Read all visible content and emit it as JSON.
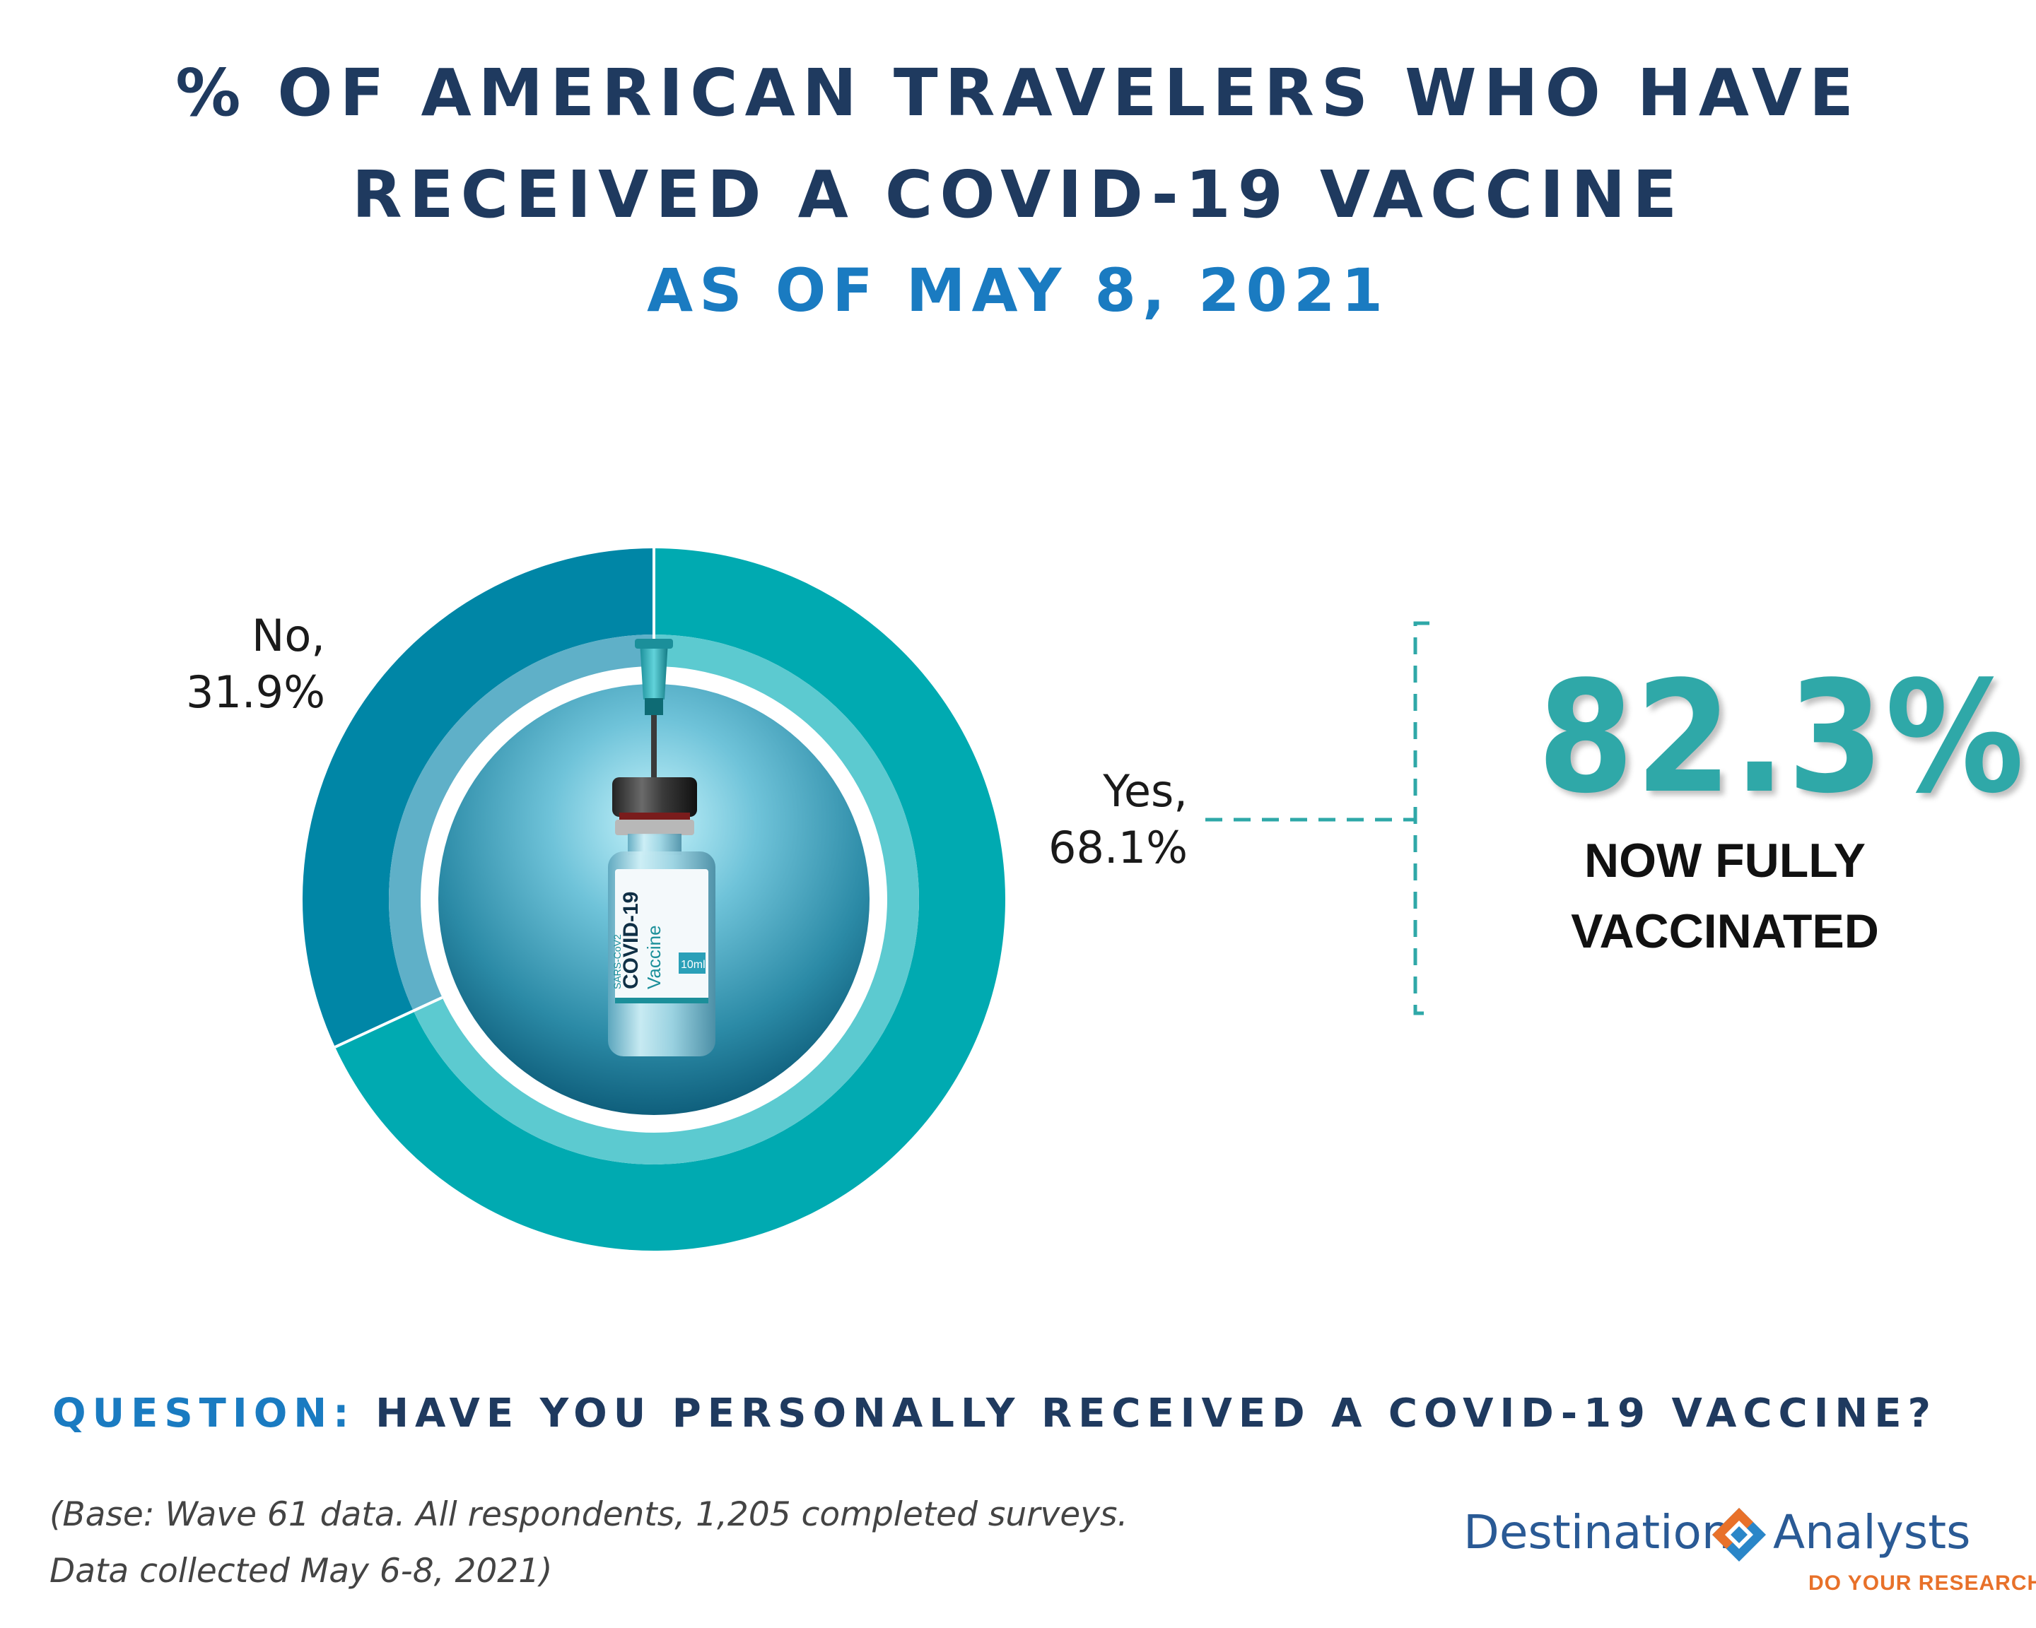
{
  "title": {
    "line1": "% OF AMERICAN TRAVELERS WHO HAVE",
    "line2": "RECEIVED A COVID-19 VACCINE",
    "subtitle": "AS OF MAY 8, 2021"
  },
  "chart_data": {
    "type": "pie",
    "style": "donut",
    "categories": [
      "Yes",
      "No"
    ],
    "values": [
      68.1,
      31.9
    ],
    "labels": [
      {
        "line1": "Yes,",
        "line2": "68.1%"
      },
      {
        "line1": "No,",
        "line2": "31.9%"
      }
    ],
    "colors": [
      "#00aab1",
      "#0086a6"
    ],
    "inner_ring_colors": [
      "#5ccad0",
      "#5fb0c8"
    ],
    "center_image": "covid-19-vaccine-vial",
    "vial_text": {
      "brand": "COVID-19",
      "name": "Vaccine",
      "side": "SARS-CoV2",
      "volume": "10ml"
    }
  },
  "callout": {
    "value": "82.3%",
    "caption_line1": "NOW FULLY",
    "caption_line2": "VACCINATED",
    "color": "#2fa8a8"
  },
  "question": {
    "prefix": "QUESTION:",
    "text": "HAVE YOU PERSONALLY RECEIVED A COVID-19 VACCINE?"
  },
  "note": {
    "line1": "(Base: Wave 61 data. All respondents, 1,205 completed surveys.",
    "line2": "Data collected May 6-8, 2021)"
  },
  "logo": {
    "word1": "Destination",
    "word2": "Analysts",
    "tagline": "DO YOUR RESEARCH",
    "icon": "diamond-logo-icon"
  }
}
